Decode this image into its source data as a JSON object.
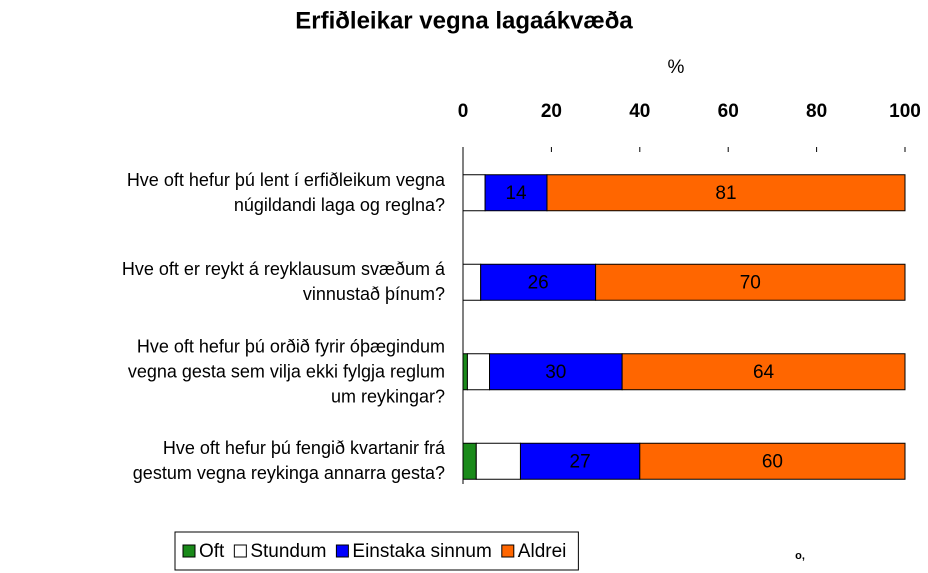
{
  "chart_data": {
    "type": "stacked_bar_horizontal",
    "title": "Erfiðleikar vegna lagaákvæða",
    "x_label": "%",
    "categories": [
      "Hve oft hefur þú lent í erfiðleikum vegna\nnúgildandi laga og reglna?",
      "Hve oft er reykt á reyklausum svæðum á\nvinnustað þínum?",
      "Hve oft hefur þú orðið fyrir óþægindum\nvegna gesta sem vilja ekki fylgja reglum\num reykingar?",
      "Hve oft hefur þú fengið kvartanir frá\ngestum vegna reykinga annarra gesta?"
    ],
    "series": [
      {
        "name": "Oft",
        "color": "#1a8a1a",
        "values": [
          0,
          0,
          1,
          3
        ]
      },
      {
        "name": "Stundum",
        "color": "#ffffff",
        "values": [
          5,
          4,
          5,
          10
        ]
      },
      {
        "name": "Einstaka sinnum",
        "color": "#0000ff",
        "values": [
          14,
          26,
          30,
          27
        ]
      },
      {
        "name": "Aldrei",
        "color": "#ff6600",
        "values": [
          81,
          70,
          64,
          60
        ]
      }
    ],
    "xlim": [
      0,
      100
    ],
    "xticks": [
      0,
      20,
      40,
      60,
      80,
      100
    ],
    "grid": false,
    "legend": "bottom",
    "annotation": "o,"
  }
}
